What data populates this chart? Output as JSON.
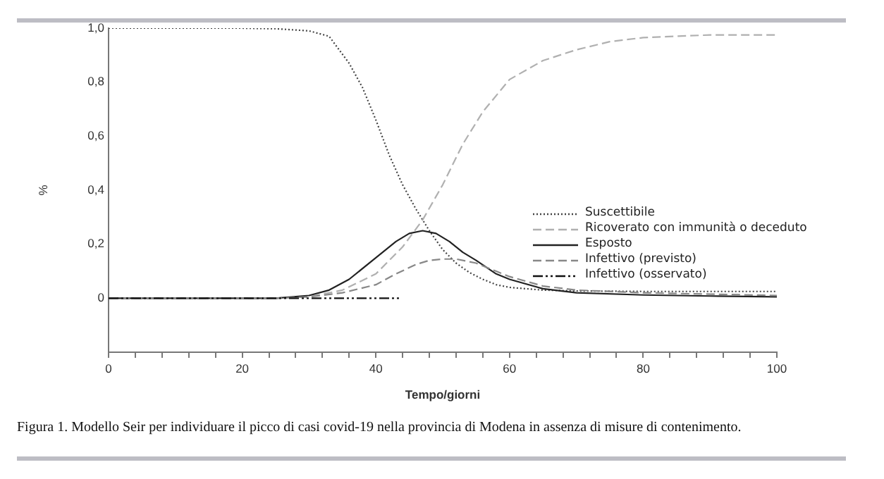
{
  "chart_data": {
    "type": "line",
    "xlabel": "Tempo/giorni",
    "ylabel": "%",
    "xlim": [
      0,
      100
    ],
    "ylim": [
      -0.2,
      1.0
    ],
    "xticks": [
      0,
      {
        "value": 4,
        "label": null
      },
      {
        "value": 8,
        "label": null
      },
      {
        "value": 12,
        "label": null
      },
      {
        "value": 16,
        "label": null
      },
      20,
      {
        "value": 24,
        "label": null
      },
      {
        "value": 28,
        "label": null
      },
      {
        "value": 32,
        "label": null
      },
      {
        "value": 36,
        "label": null
      },
      40,
      {
        "value": 44,
        "label": null
      },
      {
        "value": 48,
        "label": null
      },
      {
        "value": 52,
        "label": null
      },
      {
        "value": 56,
        "label": null
      },
      60,
      {
        "value": 64,
        "label": null
      },
      {
        "value": 68,
        "label": null
      },
      {
        "value": 72,
        "label": null
      },
      {
        "value": 76,
        "label": null
      },
      80,
      {
        "value": 84,
        "label": null
      },
      {
        "value": 88,
        "label": null
      },
      {
        "value": 92,
        "label": null
      },
      {
        "value": 96,
        "label": null
      },
      100
    ],
    "yticks": [
      {
        "value": -0.2,
        "label": null
      },
      0,
      {
        "value": 0.2,
        "label": "0,2"
      },
      {
        "value": 0.4,
        "label": "0,4"
      },
      {
        "value": 0.6,
        "label": "0,6"
      },
      {
        "value": 0.8,
        "label": "0,8"
      },
      {
        "value": 1.0,
        "label": "1,0"
      }
    ],
    "grid": false,
    "legend": "right",
    "marker": "none",
    "annotations": [
      "Figura 1. Modello Seir per individuare il picco di casi covid-19 nella provincia di Modena in assenza di misure di contenimento."
    ],
    "series": [
      {
        "name": "Suscettibile",
        "color": "#444444",
        "line_style": "dotted",
        "x": [
          0,
          10,
          20,
          25,
          30,
          33,
          36,
          38,
          40,
          42,
          44,
          46,
          48,
          50,
          52,
          54,
          56,
          58,
          60,
          65,
          70,
          80,
          90,
          100
        ],
        "values": [
          1,
          1,
          1,
          0.998,
          0.99,
          0.97,
          0.87,
          0.78,
          0.66,
          0.53,
          0.42,
          0.33,
          0.25,
          0.18,
          0.13,
          0.095,
          0.07,
          0.05,
          0.04,
          0.03,
          0.027,
          0.025,
          0.025,
          0.025
        ]
      },
      {
        "name": "Ricoverato con immunità o deceduto",
        "color": "#b0b0b0",
        "line_style": "dashed",
        "x": [
          0,
          25,
          30,
          35,
          40,
          44,
          47,
          50,
          53,
          56,
          60,
          65,
          70,
          75,
          80,
          90,
          100
        ],
        "values": [
          0,
          0,
          0.005,
          0.03,
          0.09,
          0.19,
          0.29,
          0.42,
          0.57,
          0.69,
          0.81,
          0.88,
          0.92,
          0.95,
          0.965,
          0.975,
          0.975
        ]
      },
      {
        "name": "Esposto",
        "color": "#222222",
        "line_style": "solid",
        "x": [
          0,
          25,
          30,
          33,
          36,
          40,
          43,
          45,
          47,
          49,
          51,
          53,
          55,
          58,
          60,
          65,
          70,
          80,
          90,
          100
        ],
        "values": [
          0,
          0,
          0.01,
          0.03,
          0.07,
          0.15,
          0.21,
          0.24,
          0.25,
          0.24,
          0.21,
          0.17,
          0.14,
          0.09,
          0.07,
          0.035,
          0.02,
          0.012,
          0.008,
          0.005
        ]
      },
      {
        "name": "Infettivo (previsto)",
        "color": "#888888",
        "line_style": "dashed",
        "x": [
          0,
          25,
          30,
          35,
          40,
          43,
          46,
          48,
          50,
          52,
          55,
          58,
          60,
          65,
          70,
          80,
          90,
          100
        ],
        "values": [
          0,
          0,
          0.005,
          0.02,
          0.05,
          0.09,
          0.125,
          0.14,
          0.145,
          0.145,
          0.13,
          0.1,
          0.08,
          0.045,
          0.03,
          0.02,
          0.015,
          0.01
        ]
      },
      {
        "name": "Infettivo (osservato)",
        "color": "#111111",
        "line_style": "dashdot",
        "x": [
          0,
          10,
          20,
          30,
          43.5
        ],
        "values": [
          0,
          0,
          0,
          0,
          0
        ]
      }
    ]
  }
}
